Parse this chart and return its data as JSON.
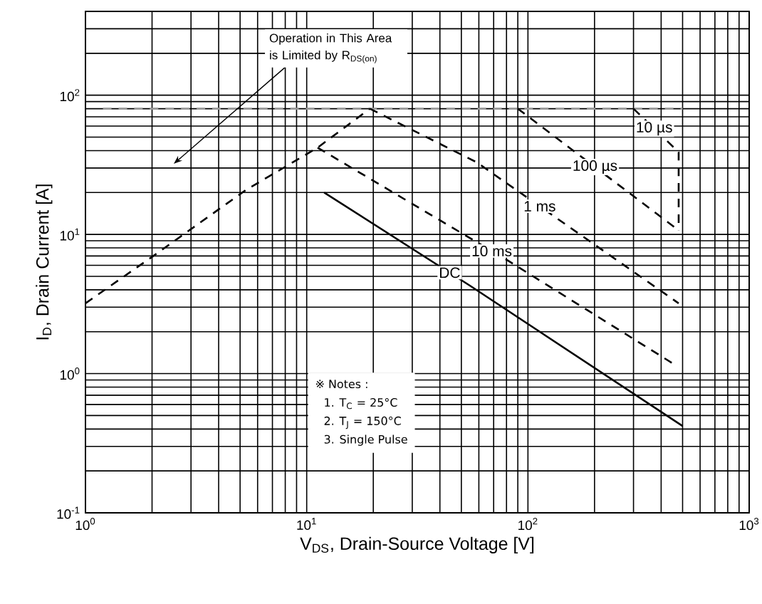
{
  "chart_data": {
    "type": "line",
    "xlabel": "V$_{DS}$, Drain-Source Voltage [V]",
    "ylabel": "I$_{D}$, Drain Current [A]",
    "log": "xy",
    "grid": true,
    "xlim": [
      1,
      1000
    ],
    "ylim": [
      0.1,
      400
    ],
    "xticks": [
      {
        "value": 1,
        "label": "10$^{0}$"
      },
      {
        "value": 10,
        "label": "10$^{1}$"
      },
      {
        "value": 100,
        "label": "10$^{2}$"
      },
      {
        "value": 1000,
        "label": "10$^{3}$"
      }
    ],
    "yticks": [
      {
        "value": 0.1,
        "label": "10$^{-1}$"
      },
      {
        "value": 1,
        "label": "10$^{0}$"
      },
      {
        "value": 10,
        "label": "10$^{1}$"
      },
      {
        "value": 100,
        "label": "10$^{2}$"
      }
    ],
    "series": [
      {
        "color": "#999999",
        "line_style": "dashed",
        "x": [
          1.2,
          500
        ],
        "values": [
          80,
          80
        ]
      },
      {
        "color": "#000000",
        "line_style": "dashed",
        "x": [
          1,
          2,
          5.3,
          11.2,
          19.3
        ],
        "values": [
          3.2,
          6.9,
          20.8,
          42,
          80
        ]
      },
      {
        "name": "10 µs",
        "color": "#000000",
        "line_style": "dashed",
        "x": [
          300,
          480,
          480
        ],
        "values": [
          80,
          39,
          10.7
        ]
      },
      {
        "name": "100 µs",
        "color": "#000000",
        "line_style": "dashed",
        "x": [
          90,
          480
        ],
        "values": [
          80,
          10.7
        ]
      },
      {
        "name": "1 ms",
        "color": "#000000",
        "line_style": "dashed",
        "x": [
          19.3,
          58.6,
          480
        ],
        "values": [
          80,
          33,
          3.2
        ]
      },
      {
        "name": "10 ms",
        "color": "#000000",
        "line_style": "dashed",
        "x": [
          11.2,
          81,
          453
        ],
        "values": [
          42,
          6.5,
          1.18
        ]
      },
      {
        "name": "DC",
        "color": "#000000",
        "line_style": "solid",
        "x": [
          12,
          54.5,
          500
        ],
        "values": [
          20,
          4.3,
          0.42
        ]
      }
    ],
    "annotations": [
      "Operation in This Area is Limited by R$_{DS(on)}$",
      "※ Notes :",
      "1. T$_{C}$ = 25°C",
      "2. T$_{J}$ = 150°C",
      "3. Single Pulse"
    ]
  }
}
